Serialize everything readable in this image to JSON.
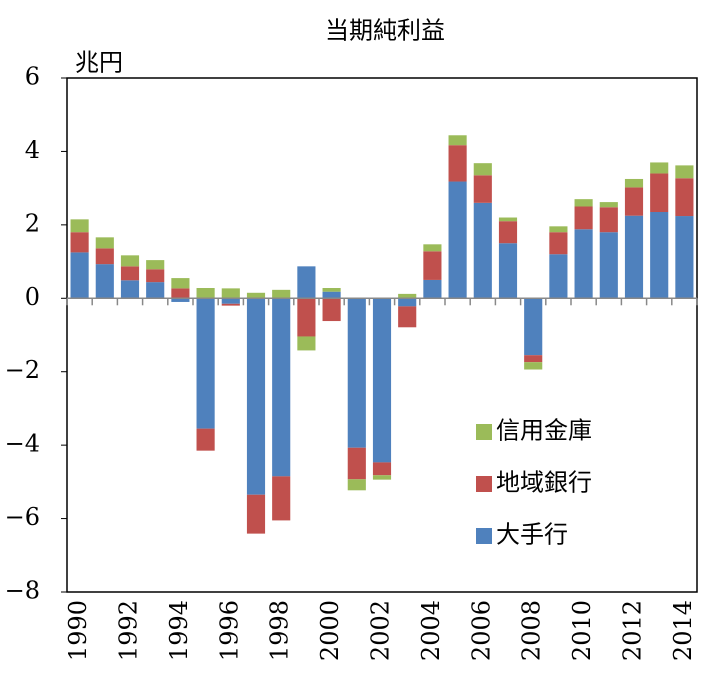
{
  "chart_data": {
    "type": "stacked_bar",
    "title": "当期純利益",
    "y_unit": "兆円",
    "categories": [
      "1990",
      null,
      "1992",
      null,
      "1994",
      null,
      "1996",
      null,
      "1998",
      null,
      "2000",
      null,
      "2002",
      null,
      "2004",
      null,
      "2006",
      null,
      "2008",
      null,
      "2010",
      null,
      "2012",
      null,
      "2014"
    ],
    "series": [
      {
        "name": "大手行",
        "color": "#4f81bd",
        "values": [
          1.25,
          0.93,
          0.49,
          0.44,
          -0.1,
          -3.55,
          -0.15,
          -5.35,
          -4.85,
          0.87,
          0.18,
          -4.07,
          -4.47,
          -0.22,
          0.5,
          3.18,
          2.6,
          1.5,
          -1.55,
          1.2,
          1.88,
          1.8,
          2.25,
          2.35,
          2.24
        ]
      },
      {
        "name": "地域銀行",
        "color": "#c0504d",
        "values": [
          0.55,
          0.43,
          0.38,
          0.35,
          0.27,
          -0.6,
          -0.05,
          -1.06,
          -1.2,
          -1.04,
          -0.62,
          -0.86,
          -0.35,
          -0.57,
          0.78,
          0.99,
          0.75,
          0.6,
          -0.19,
          0.6,
          0.62,
          0.68,
          0.77,
          1.05,
          1.03
        ]
      },
      {
        "name": "信用金庫",
        "color": "#9bbb59",
        "values": [
          0.35,
          0.3,
          0.3,
          0.25,
          0.28,
          0.28,
          0.27,
          0.15,
          0.23,
          -0.38,
          0.1,
          -0.3,
          -0.12,
          0.12,
          0.19,
          0.27,
          0.33,
          0.1,
          -0.2,
          0.16,
          0.2,
          0.14,
          0.23,
          0.3,
          0.35
        ]
      }
    ],
    "ylim": [
      -8,
      6
    ],
    "yticks": [
      {
        "value": -8,
        "label": "−8"
      },
      {
        "value": -6,
        "label": "−6"
      },
      {
        "value": -4,
        "label": "−4"
      },
      {
        "value": -2,
        "label": "−2"
      },
      0,
      2,
      4,
      6
    ],
    "legend": "right"
  }
}
